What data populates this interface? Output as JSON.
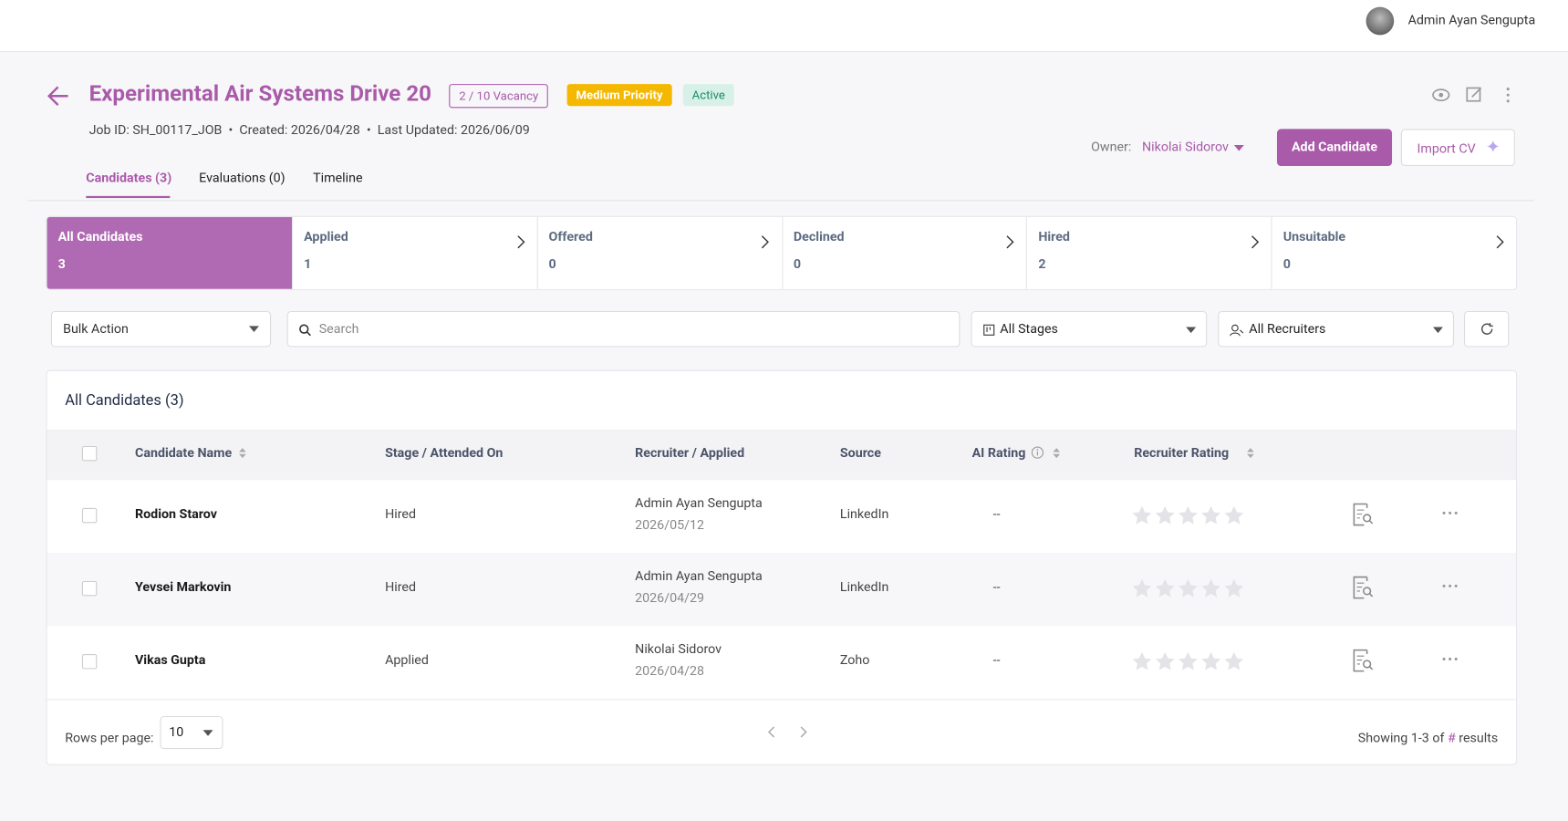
{
  "header": {
    "user": "Admin Ayan Sengupta"
  },
  "job": {
    "title": "Experimental Air Systems Drive 20",
    "vacancy": "2 / 10 Vacancy",
    "priority": "Medium Priority",
    "status": "Active",
    "job_id": "Job ID: SH_00117_JOB",
    "created": "Created: 2026/04/28",
    "updated": "Last Updated: 2026/06/09",
    "owner_label": "Owner:",
    "owner": "Nikolai Sidorov",
    "add_button": "Add Candidate",
    "import_button": "Import CV"
  },
  "tabs": [
    "Candidates (3)",
    "Evaluations (0)",
    "Timeline"
  ],
  "stages": [
    {
      "label": "All Candidates",
      "count": 3
    },
    {
      "label": "Applied",
      "count": 1
    },
    {
      "label": "Offered",
      "count": 0
    },
    {
      "label": "Declined",
      "count": 0
    },
    {
      "label": "Hired",
      "count": 2
    },
    {
      "label": "Unsuitable",
      "count": 0
    }
  ],
  "filters": {
    "bulk": "Bulk Action",
    "search": "Search",
    "stages": "All Stages",
    "recruiters": "All Recruiters"
  },
  "table": {
    "title": "All Candidates (3)",
    "columns": [
      "Candidate Name",
      "Stage / Attended On",
      "Recruiter / Applied",
      "Source",
      "AI Rating",
      "Recruiter Rating"
    ],
    "rows": [
      [
        "Rodion Starov",
        "Hired",
        "Admin Ayan Sengupta",
        "2026/05/12",
        "LinkedIn",
        "--"
      ],
      [
        "Yevsei Markovin",
        "Hired",
        "Admin Ayan Sengupta",
        "2026/04/29",
        "LinkedIn",
        "--"
      ],
      [
        "Vikas Gupta",
        "Applied",
        "Nikolai Sidorov",
        "2026/04/28",
        "Zoho",
        "--"
      ]
    ]
  },
  "footer": {
    "rows_label": "Rows per page:",
    "rows_value": 10,
    "showing": "Showing 1-3 of",
    "hash": "#",
    "results": "results"
  }
}
